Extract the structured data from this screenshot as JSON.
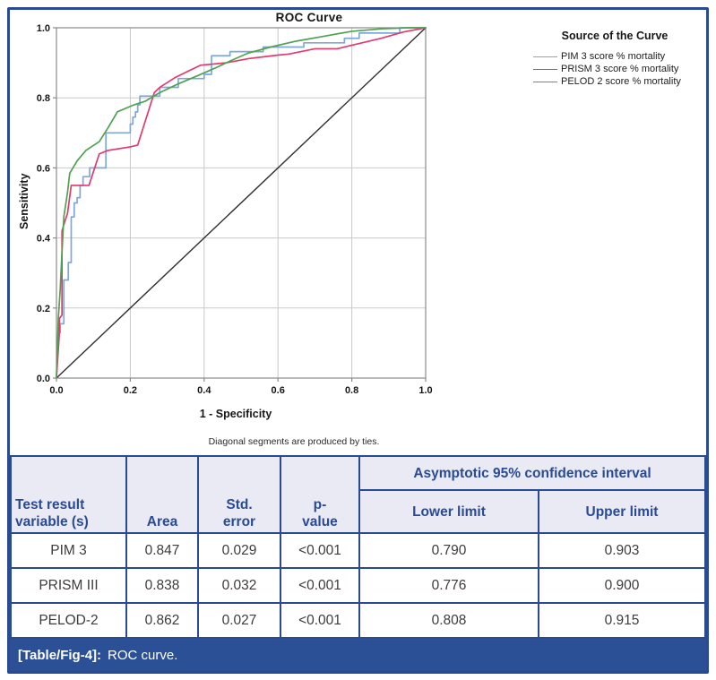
{
  "colors": {
    "navy": "#2A4B93",
    "caption_bg": "#2B5096",
    "header_bg": "#E9EAF4",
    "grid": "#C9C9C9",
    "frame": "#8A8A8A",
    "reference_line": "#2F2F2F"
  },
  "chart_data": {
    "type": "line",
    "title": "ROC Curve",
    "xlabel": "1 - Specificity",
    "ylabel": "Sensitivity",
    "xlim": [
      0,
      1
    ],
    "ylim": [
      0,
      1
    ],
    "x_ticks": [
      "0.0",
      "0.2",
      "0.4",
      "0.6",
      "0.8",
      "1.0"
    ],
    "y_ticks": [
      "0.0",
      "0.2",
      "0.4",
      "0.6",
      "0.8",
      "1.0"
    ],
    "grid": true,
    "legend_title": "Source of the Curve",
    "legend_position": "right",
    "footnote": "Diagonal segments are produced by ties.",
    "series": [
      {
        "name": "PIM 3 score % mortality",
        "color": "#7FA8D9",
        "points": [
          [
            0,
            0
          ],
          [
            0.005,
            0.13
          ],
          [
            0.01,
            0.13
          ],
          [
            0.01,
            0.155
          ],
          [
            0.02,
            0.155
          ],
          [
            0.02,
            0.28
          ],
          [
            0.032,
            0.28
          ],
          [
            0.032,
            0.33
          ],
          [
            0.04,
            0.33
          ],
          [
            0.04,
            0.46
          ],
          [
            0.048,
            0.46
          ],
          [
            0.048,
            0.5
          ],
          [
            0.056,
            0.5
          ],
          [
            0.056,
            0.515
          ],
          [
            0.064,
            0.515
          ],
          [
            0.064,
            0.55
          ],
          [
            0.072,
            0.55
          ],
          [
            0.072,
            0.575
          ],
          [
            0.09,
            0.575
          ],
          [
            0.09,
            0.6
          ],
          [
            0.134,
            0.6
          ],
          [
            0.134,
            0.7
          ],
          [
            0.2,
            0.7
          ],
          [
            0.2,
            0.725
          ],
          [
            0.207,
            0.725
          ],
          [
            0.207,
            0.745
          ],
          [
            0.214,
            0.745
          ],
          [
            0.214,
            0.76
          ],
          [
            0.22,
            0.76
          ],
          [
            0.22,
            0.78
          ],
          [
            0.226,
            0.78
          ],
          [
            0.226,
            0.805
          ],
          [
            0.28,
            0.805
          ],
          [
            0.28,
            0.83
          ],
          [
            0.33,
            0.83
          ],
          [
            0.33,
            0.855
          ],
          [
            0.4,
            0.855
          ],
          [
            0.4,
            0.867
          ],
          [
            0.42,
            0.867
          ],
          [
            0.42,
            0.92
          ],
          [
            0.47,
            0.92
          ],
          [
            0.47,
            0.932
          ],
          [
            0.56,
            0.932
          ],
          [
            0.56,
            0.945
          ],
          [
            0.67,
            0.945
          ],
          [
            0.67,
            0.957
          ],
          [
            0.78,
            0.957
          ],
          [
            0.78,
            0.97
          ],
          [
            0.82,
            0.97
          ],
          [
            0.82,
            0.985
          ],
          [
            0.93,
            0.985
          ],
          [
            0.93,
            1.0
          ],
          [
            1,
            1
          ]
        ]
      },
      {
        "name": "PRISM 3 score % mortality",
        "color": "#E23A6C",
        "points": [
          [
            0,
            0
          ],
          [
            0.008,
            0.13
          ],
          [
            0.008,
            0.17
          ],
          [
            0.015,
            0.18
          ],
          [
            0.015,
            0.42
          ],
          [
            0.022,
            0.445
          ],
          [
            0.03,
            0.47
          ],
          [
            0.04,
            0.55
          ],
          [
            0.088,
            0.55
          ],
          [
            0.116,
            0.64
          ],
          [
            0.14,
            0.65
          ],
          [
            0.2,
            0.66
          ],
          [
            0.22,
            0.665
          ],
          [
            0.265,
            0.815
          ],
          [
            0.28,
            0.83
          ],
          [
            0.32,
            0.857
          ],
          [
            0.36,
            0.878
          ],
          [
            0.39,
            0.893
          ],
          [
            0.46,
            0.9
          ],
          [
            0.52,
            0.912
          ],
          [
            0.6,
            0.922
          ],
          [
            0.63,
            0.925
          ],
          [
            0.7,
            0.94
          ],
          [
            0.76,
            0.94
          ],
          [
            0.82,
            0.955
          ],
          [
            0.88,
            0.97
          ],
          [
            0.94,
            0.988
          ],
          [
            1,
            1
          ]
        ]
      },
      {
        "name": "PELOD 2 score % mortality",
        "color": "#4FA251",
        "points": [
          [
            0,
            0
          ],
          [
            0.005,
            0.17
          ],
          [
            0.01,
            0.25
          ],
          [
            0.015,
            0.36
          ],
          [
            0.02,
            0.46
          ],
          [
            0.03,
            0.53
          ],
          [
            0.036,
            0.585
          ],
          [
            0.056,
            0.62
          ],
          [
            0.08,
            0.65
          ],
          [
            0.116,
            0.675
          ],
          [
            0.14,
            0.715
          ],
          [
            0.165,
            0.76
          ],
          [
            0.21,
            0.78
          ],
          [
            0.24,
            0.79
          ],
          [
            0.28,
            0.815
          ],
          [
            0.33,
            0.84
          ],
          [
            0.38,
            0.862
          ],
          [
            0.43,
            0.885
          ],
          [
            0.47,
            0.905
          ],
          [
            0.52,
            0.928
          ],
          [
            0.58,
            0.945
          ],
          [
            0.65,
            0.962
          ],
          [
            0.72,
            0.975
          ],
          [
            0.8,
            0.99
          ],
          [
            0.88,
            0.997
          ],
          [
            0.95,
            1.0
          ],
          [
            1,
            1
          ]
        ]
      }
    ],
    "reference_line": {
      "name": "diagonal",
      "color": "#2F2F2F",
      "points": [
        [
          0,
          0
        ],
        [
          1,
          1
        ]
      ]
    }
  },
  "table": {
    "headers": {
      "col1": "Test result variable (s)",
      "col2": "Area",
      "col3": "Std. error",
      "col4": "p-value",
      "ci_group": "Asymptotic 95% confidence interval",
      "ci_lower": "Lower limit",
      "ci_upper": "Upper limit"
    },
    "rows": [
      {
        "variable": "PIM 3",
        "area": "0.847",
        "std_error": "0.029",
        "p_value": "<0.001",
        "lower": "0.790",
        "upper": "0.903"
      },
      {
        "variable": "PRISM III",
        "area": "0.838",
        "std_error": "0.032",
        "p_value": "<0.001",
        "lower": "0.776",
        "upper": "0.900"
      },
      {
        "variable": "PELOD-2",
        "area": "0.862",
        "std_error": "0.027",
        "p_value": "<0.001",
        "lower": "0.808",
        "upper": "0.915"
      }
    ]
  },
  "caption": {
    "label": "[Table/Fig-4]:",
    "text": "ROC curve."
  }
}
